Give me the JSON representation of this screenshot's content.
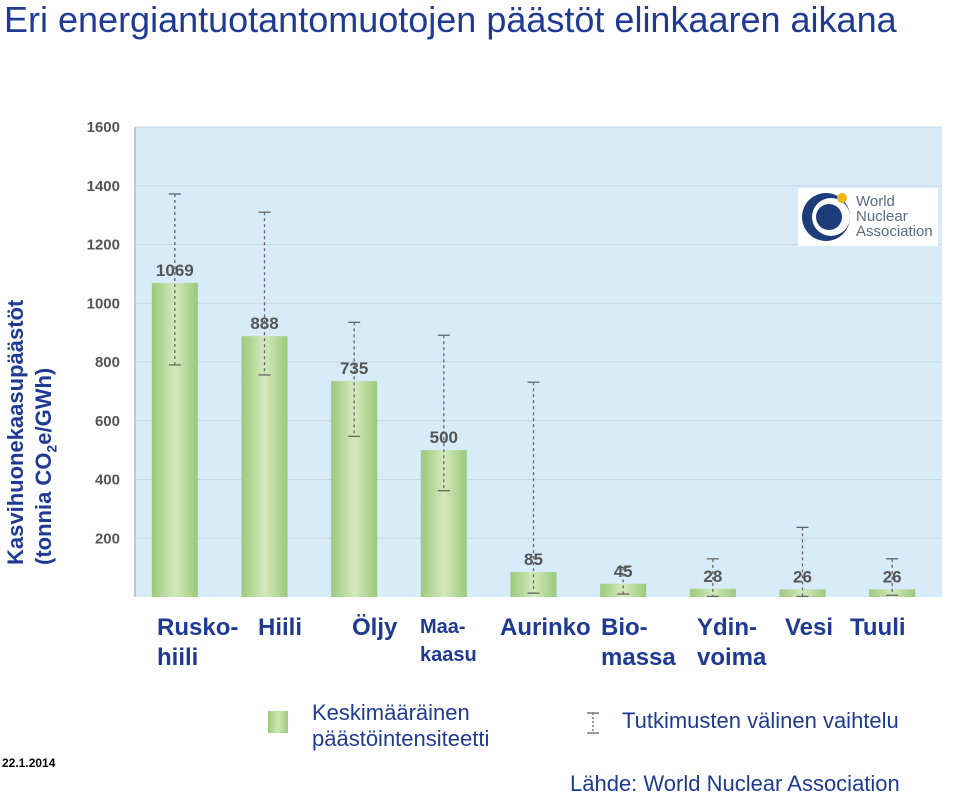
{
  "title": "Eri energiantuotantomuotojen päästöt elinkaaren aikana",
  "ylabel_line1": "Kasvihuonekaasupäästöt",
  "ylabel_line2_pre": "(tonnia CO",
  "ylabel_line2_sub": "2",
  "ylabel_line2_post": "e/GWh)",
  "categories": [
    "Rusko-\nhiili",
    "Hiili",
    "Öljy",
    "Maa-\nkaasu",
    "Aurinko",
    "Bio-\nmassa",
    "Ydin-\nvoima",
    "Vesi",
    "Tuuli"
  ],
  "legend": {
    "mean_label": "Keskimääräinen\npäästöintensiteetti",
    "range_label": "Tutkimusten välinen vaihtelu"
  },
  "date": "22.1.2014",
  "source": "Lähde: World Nuclear Association",
  "logo_text": "World\nNuclear\nAssociation",
  "colors": {
    "text": "#1f3a93",
    "plot_bg": "#d7ebf8",
    "bar": "#9bc97a",
    "bar_light": "#d3e9bd"
  },
  "chart_data": {
    "type": "bar",
    "categories": [
      "Rusko-hiili",
      "Hiili",
      "Öljy",
      "Maakaasu",
      "Aurinko",
      "Biomassa",
      "Ydinvoima",
      "Vesi",
      "Tuuli"
    ],
    "values": [
      1069,
      888,
      735,
      500,
      85,
      45,
      28,
      26,
      26
    ],
    "value_labels": [
      "1069",
      "888",
      "735",
      "500",
      "85",
      "45",
      "28",
      "26",
      "26"
    ],
    "error_low": [
      790,
      756,
      547,
      362,
      13,
      10,
      2,
      2,
      6
    ],
    "error_high": [
      1372,
      1310,
      935,
      891,
      731,
      101,
      130,
      237,
      130
    ],
    "yticks": [
      "200",
      "400",
      "600",
      "800",
      "1000",
      "1200",
      "1400",
      "1600"
    ],
    "ylim": [
      0,
      1600
    ],
    "grid": true
  }
}
